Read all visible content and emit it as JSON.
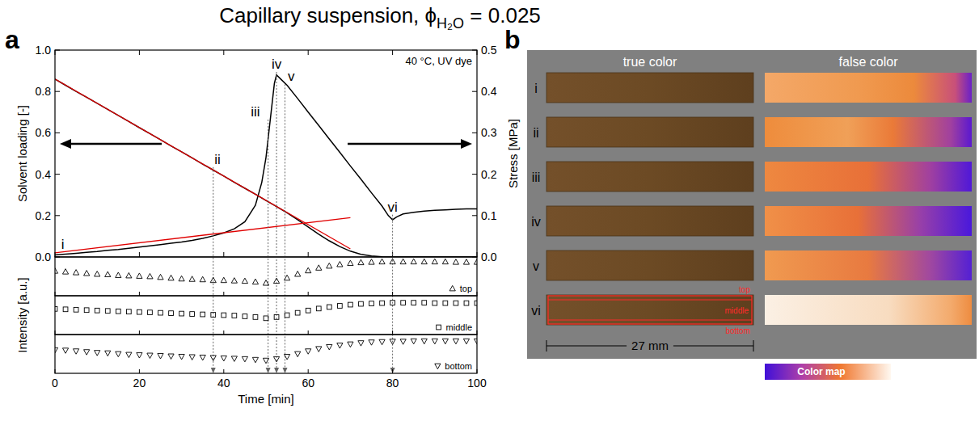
{
  "title": {
    "main": "Capillary suspension, ϕ",
    "subscript": "H₂O",
    "tail": " = 0.025"
  },
  "panel_labels": [
    "a",
    "b"
  ],
  "chart_data": [
    {
      "type": "line",
      "xlim": [
        0,
        100
      ],
      "xticks": [
        0,
        20,
        40,
        60,
        80,
        100
      ],
      "ylim": [
        0,
        1
      ],
      "yticks": [
        {
          "value": 0,
          "label": "0.0"
        },
        0.2,
        0.4,
        0.6,
        0.8,
        {
          "value": 1,
          "label": "1.0"
        }
      ],
      "y2lim": [
        0,
        0.5
      ],
      "y2ticks": [
        {
          "value": 0,
          "label": "0.0"
        },
        0.1,
        0.2,
        0.3,
        0.4,
        0.5
      ],
      "ylabel": "Solvent loading [-]",
      "y2label": "Stress [MPa]",
      "tick_labels": "y",
      "note": "40 °C, UV dye",
      "series": [
        {
          "color": "#000000",
          "x": [
            0,
            2.5,
            5,
            7.5,
            10,
            12.5,
            15,
            17.5,
            20,
            22.5,
            25,
            27.5,
            30,
            32.5,
            35,
            37.5,
            40,
            42.5,
            45,
            47.5,
            50,
            52.5,
            55,
            57.5,
            60,
            62.5,
            65,
            67.5,
            70,
            72.5,
            75,
            77.5,
            80,
            82.5,
            85,
            87.5,
            90,
            92.5,
            95,
            97.5,
            100
          ],
          "values": [
            0.86,
            0.83,
            0.8,
            0.772,
            0.743,
            0.713,
            0.684,
            0.655,
            0.625,
            0.596,
            0.567,
            0.537,
            0.508,
            0.479,
            0.449,
            0.42,
            0.391,
            0.361,
            0.332,
            0.303,
            0.273,
            0.244,
            0.213,
            0.18,
            0.145,
            0.11,
            0.078,
            0.05,
            0.028,
            0.013,
            0.005,
            0.001,
            0,
            0,
            0,
            0,
            0,
            0,
            0,
            0,
            0
          ]
        },
        {
          "color": "#000000",
          "axis": "y2",
          "x": [
            0,
            2.5,
            5,
            7.5,
            10,
            12.5,
            15,
            17.5,
            20,
            22.5,
            25,
            27.5,
            30,
            32.5,
            35,
            37.5,
            40,
            42.5,
            45,
            47.5,
            49,
            50,
            51,
            52,
            52.5,
            53.5,
            55,
            57.5,
            60,
            62.5,
            65,
            67.5,
            70,
            72.5,
            75,
            77.5,
            79,
            80,
            81,
            82.5,
            85,
            87.5,
            90,
            92.5,
            95,
            97.5,
            100
          ],
          "values": [
            0.005,
            0.007,
            0.009,
            0.011,
            0.013,
            0.016,
            0.018,
            0.021,
            0.024,
            0.027,
            0.03,
            0.033,
            0.036,
            0.04,
            0.045,
            0.051,
            0.058,
            0.068,
            0.085,
            0.125,
            0.18,
            0.24,
            0.33,
            0.42,
            0.44,
            0.43,
            0.415,
            0.383,
            0.35,
            0.318,
            0.285,
            0.253,
            0.22,
            0.188,
            0.155,
            0.123,
            0.1,
            0.09,
            0.097,
            0.104,
            0.108,
            0.111,
            0.113,
            0.114,
            0.115,
            0.116,
            0.116
          ]
        },
        {
          "color": "#e00000",
          "x": [
            0,
            70
          ],
          "values": [
            0.86,
            0.039
          ]
        },
        {
          "color": "#e00000",
          "x": [
            0,
            70
          ],
          "values": [
            0.02,
            0.19
          ]
        }
      ],
      "markers": [
        {
          "label": "ii",
          "x": 37.5,
          "label_x": 38.5,
          "label_y": 0.45
        },
        {
          "label": "iii",
          "x": 50.5,
          "label_x": 47.5,
          "label_y": 0.68
        },
        {
          "label": "iv",
          "x": 52.5,
          "label_x": 52.5,
          "label_y": 0.91
        },
        {
          "label": "v",
          "x": 54.5,
          "label_x": 56,
          "label_y": 0.85
        },
        {
          "label": "vi",
          "x": 80,
          "label_x": 80,
          "label_y": 0.22
        }
      ],
      "annotations": [
        {
          "text": "i",
          "x": 1.5,
          "y": 0.04
        }
      ]
    },
    {
      "type": "scatter",
      "xlim": [
        0,
        100
      ],
      "xticks": [
        0,
        20,
        40,
        60,
        80,
        100
      ],
      "ylim": [
        0,
        1
      ],
      "tick_labels": false,
      "legend": "lower right",
      "x": [
        0,
        2.5,
        5,
        7.5,
        10,
        12.5,
        15,
        17.5,
        20,
        22.5,
        25,
        27.5,
        30,
        32.5,
        35,
        37.5,
        40,
        42.5,
        45,
        47.5,
        50,
        52.5,
        55,
        57.5,
        60,
        62.5,
        65,
        67.5,
        70,
        72.5,
        75,
        77.5,
        80,
        82.5,
        85,
        87.5,
        90,
        92.5,
        95,
        97.5,
        100
      ],
      "series": [
        {
          "name": "top",
          "marker": "triangle-up",
          "color": "#000000",
          "values": [
            0.64,
            0.62,
            0.6,
            0.58,
            0.56,
            0.55,
            0.53,
            0.52,
            0.51,
            0.5,
            0.48,
            0.46,
            0.44,
            0.43,
            0.42,
            0.4,
            0.4,
            0.39,
            0.38,
            0.36,
            0.33,
            0.38,
            0.46,
            0.56,
            0.65,
            0.72,
            0.77,
            0.81,
            0.84,
            0.86,
            0.87,
            0.88,
            0.88,
            0.88,
            0.88,
            0.88,
            0.88,
            0.88,
            0.87,
            0.87,
            0.87
          ]
        }
      ]
    },
    {
      "type": "scatter",
      "xlim": [
        0,
        100
      ],
      "xticks": [
        0,
        20,
        40,
        60,
        80,
        100
      ],
      "ylim": [
        0,
        1
      ],
      "tick_labels": false,
      "legend": "lower right",
      "ylabel": "Intensity [a.u.]",
      "x": [
        0,
        2.5,
        5,
        7.5,
        10,
        12.5,
        15,
        17.5,
        20,
        22.5,
        25,
        27.5,
        30,
        32.5,
        35,
        37.5,
        40,
        42.5,
        45,
        47.5,
        50,
        52.5,
        55,
        57.5,
        60,
        62.5,
        65,
        67.5,
        70,
        72.5,
        75,
        77.5,
        80,
        82.5,
        85,
        87.5,
        90,
        92.5,
        95,
        97.5,
        100
      ],
      "series": [
        {
          "name": "middle",
          "marker": "square",
          "color": "#000000",
          "values": [
            0.66,
            0.65,
            0.64,
            0.63,
            0.62,
            0.61,
            0.6,
            0.59,
            0.58,
            0.57,
            0.56,
            0.55,
            0.54,
            0.53,
            0.52,
            0.51,
            0.5,
            0.49,
            0.47,
            0.45,
            0.42,
            0.45,
            0.5,
            0.56,
            0.62,
            0.67,
            0.71,
            0.74,
            0.77,
            0.79,
            0.8,
            0.81,
            0.82,
            0.82,
            0.82,
            0.82,
            0.81,
            0.81,
            0.81,
            0.81,
            0.81
          ]
        }
      ]
    },
    {
      "type": "scatter",
      "xlim": [
        0,
        100
      ],
      "xticks": [
        0,
        20,
        40,
        60,
        80,
        100
      ],
      "ylim": [
        0,
        1
      ],
      "tick_labels": "x",
      "legend": "lower right",
      "xlabel": "Time [min]",
      "x": [
        0,
        2.5,
        5,
        7.5,
        10,
        12.5,
        15,
        17.5,
        20,
        22.5,
        25,
        27.5,
        30,
        32.5,
        35,
        37.5,
        40,
        42.5,
        45,
        47.5,
        50,
        52.5,
        55,
        57.5,
        60,
        62.5,
        65,
        67.5,
        70,
        72.5,
        75,
        77.5,
        80,
        82.5,
        85,
        87.5,
        90,
        92.5,
        95,
        97.5,
        100
      ],
      "series": [
        {
          "name": "bottom",
          "marker": "triangle-down",
          "color": "#000000",
          "values": [
            0.6,
            0.59,
            0.57,
            0.55,
            0.53,
            0.52,
            0.5,
            0.48,
            0.47,
            0.46,
            0.45,
            0.44,
            0.43,
            0.42,
            0.41,
            0.4,
            0.39,
            0.38,
            0.37,
            0.35,
            0.33,
            0.37,
            0.43,
            0.5,
            0.57,
            0.63,
            0.68,
            0.72,
            0.75,
            0.78,
            0.8,
            0.81,
            0.82,
            0.82,
            0.83,
            0.83,
            0.83,
            0.83,
            0.83,
            0.83,
            0.83
          ]
        }
      ]
    }
  ],
  "panel_b": {
    "columns": [
      "true color",
      "false color"
    ],
    "rows": [
      "i",
      "ii",
      "iii",
      "iv",
      "v",
      "vi"
    ],
    "regions": [
      "top",
      "middle",
      "bottom"
    ],
    "scale_label": "27 mm",
    "colormap_label": "Color map"
  }
}
